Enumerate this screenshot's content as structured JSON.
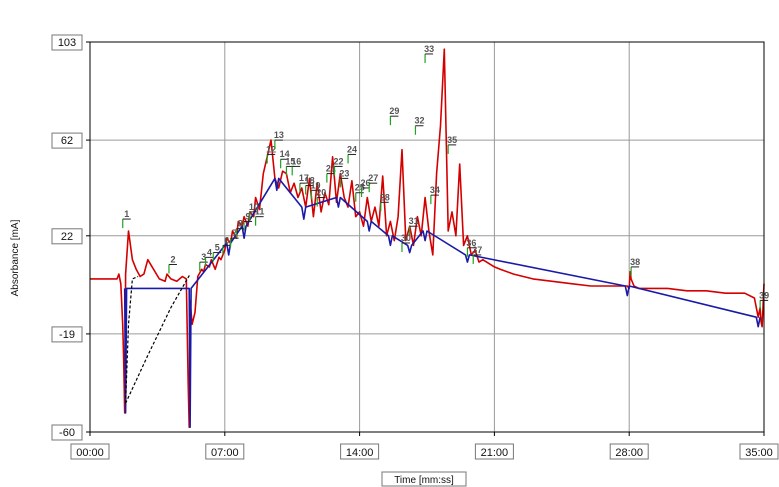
{
  "chart_data": {
    "type": "line",
    "xlabel": "Time [mm:ss]",
    "ylabel": "Absorbance [mA]",
    "xlim": [
      0,
      35
    ],
    "ylim": [
      -60,
      103
    ],
    "x_ticks": [
      {
        "value": 0,
        "label": "00:00"
      },
      {
        "value": 7,
        "label": "07:00"
      },
      {
        "value": 14,
        "label": "14:00"
      },
      {
        "value": 21,
        "label": "21:00"
      },
      {
        "value": 28,
        "label": "28:00"
      },
      {
        "value": 35,
        "label": "35:00"
      }
    ],
    "y_ticks": [
      {
        "value": -60,
        "label": "-60"
      },
      {
        "value": -19,
        "label": "-19"
      },
      {
        "value": 22,
        "label": "22"
      },
      {
        "value": 62,
        "label": "62"
      },
      {
        "value": 103,
        "label": "103"
      }
    ],
    "grid": true,
    "colors": {
      "main": "#d40000",
      "blue": "#1a1aa8",
      "peak_marker": "#1fa21f",
      "baseline": "#000000",
      "grid": "#9a9a9a"
    },
    "series": [
      {
        "color": "#d40000",
        "x": [
          0,
          1.4,
          1.5,
          1.6,
          1.7,
          1.75,
          1.8,
          1.85,
          2.0,
          2.2,
          2.4,
          2.6,
          2.8,
          3.0,
          3.6,
          3.9,
          4.0,
          4.2,
          4.5,
          4.8,
          5.0,
          5.1,
          5.15,
          5.2,
          5.3,
          5.45,
          5.6,
          5.8,
          5.9,
          6.0,
          6.2,
          6.3,
          6.5,
          6.7,
          6.8,
          7.0,
          7.1,
          7.3,
          7.4,
          7.6,
          7.7,
          7.9,
          8.0,
          8.2,
          8.3,
          8.5,
          8.6,
          8.8,
          9.0,
          9.2,
          9.4,
          9.6,
          9.8,
          10.0,
          10.2,
          10.4,
          10.6,
          10.8,
          11.0,
          11.2,
          11.4,
          11.6,
          11.8,
          12.0,
          12.2,
          12.4,
          12.6,
          12.8,
          13.0,
          13.2,
          13.4,
          13.6,
          13.8,
          14.0,
          14.2,
          14.4,
          14.6,
          14.8,
          15.0,
          15.2,
          15.4,
          15.6,
          15.8,
          16.0,
          16.2,
          16.4,
          16.6,
          16.8,
          17.0,
          17.2,
          17.4,
          17.6,
          17.8,
          18.0,
          18.2,
          18.4,
          18.6,
          18.8,
          19.0,
          19.2,
          19.4,
          19.6,
          19.8,
          20.0,
          20.2,
          20.4,
          21.0,
          21.3,
          22.0,
          23.0,
          24.0,
          25.0,
          26.0,
          27.0,
          27.5,
          27.9,
          28.0,
          28.05,
          28.1,
          28.25,
          28.5,
          29.0,
          30.0,
          31.0,
          32.0,
          33.0,
          34.0,
          34.5,
          34.7,
          34.8,
          34.85,
          34.9,
          34.95,
          35.0
        ],
        "y": [
          4,
          4,
          6,
          2,
          -15,
          -30,
          -52,
          6,
          24,
          12,
          8,
          5,
          6,
          12,
          4,
          3,
          6,
          4,
          3,
          5,
          4,
          -40,
          -58,
          -5,
          -15,
          -10,
          5,
          8,
          7,
          10,
          9,
          12,
          8,
          13,
          12,
          16,
          21,
          19,
          24,
          21,
          28,
          26,
          30,
          26,
          32,
          30,
          38,
          33,
          48,
          55,
          62,
          46,
          42,
          49,
          48,
          40,
          44,
          38,
          42,
          34,
          46,
          30,
          44,
          32,
          40,
          35,
          55,
          36,
          48,
          38,
          34,
          45,
          30,
          32,
          26,
          38,
          28,
          34,
          26,
          47,
          22,
          28,
          20,
          30,
          58,
          20,
          26,
          18,
          30,
          22,
          38,
          24,
          14,
          48,
          68,
          100,
          24,
          32,
          22,
          52,
          18,
          22,
          14,
          16,
          11,
          12,
          9,
          8,
          6,
          4,
          3,
          2,
          1,
          1,
          1,
          1,
          0,
          7,
          4,
          1,
          0,
          0,
          0,
          -1,
          -1,
          -2,
          -2,
          -4,
          -12,
          -8,
          -14,
          -16,
          -8,
          2
        ]
      },
      {
        "color": "#1a1aa8",
        "x": [
          1.8,
          1.85,
          1.9,
          5.15,
          5.2,
          5.25,
          7.1,
          7.2,
          7.3,
          7.9,
          8.0,
          8.1,
          9.6,
          9.7,
          9.8,
          11.0,
          11.1,
          11.2,
          12.8,
          12.9,
          13.0,
          14.4,
          14.5,
          14.6,
          15.5,
          15.6,
          15.7,
          16.5,
          16.6,
          16.7,
          17.3,
          17.4,
          17.5,
          19.5,
          19.6,
          19.7,
          27.8,
          27.9,
          28.0,
          34.6,
          34.7,
          34.8
        ],
        "y": [
          0,
          -52,
          0,
          0,
          -58,
          0,
          19,
          14,
          19,
          26,
          21,
          26,
          46,
          41,
          46,
          34,
          29,
          34,
          38,
          34,
          38,
          28,
          24,
          28,
          22,
          18,
          22,
          18,
          15,
          18,
          24,
          20,
          24,
          14,
          11,
          14,
          1,
          -3,
          1,
          -12,
          -16,
          -12
        ]
      },
      {
        "color": "#000000",
        "dashed": true,
        "x": [
          1.85,
          2.0,
          2.2,
          2.5
        ],
        "y": [
          -48,
          -15,
          4,
          5
        ]
      },
      {
        "color": "#000000",
        "dashed": true,
        "x": [
          1.85,
          3.0,
          4.2,
          5.2
        ],
        "y": [
          -48,
          -28,
          -8,
          6
        ]
      }
    ],
    "peaks": [
      {
        "label": "1",
        "x": 1.7,
        "y": 29
      },
      {
        "label": "2",
        "x": 4.1,
        "y": 10
      },
      {
        "label": "3",
        "x": 5.7,
        "y": 11
      },
      {
        "label": "4",
        "x": 6.0,
        "y": 13
      },
      {
        "label": "5",
        "x": 6.4,
        "y": 15
      },
      {
        "label": "6",
        "x": 6.9,
        "y": 18
      },
      {
        "label": "7",
        "x": 7.3,
        "y": 21
      },
      {
        "label": "8",
        "x": 7.6,
        "y": 25
      },
      {
        "label": "9",
        "x": 8.0,
        "y": 28
      },
      {
        "label": "10",
        "x": 8.3,
        "y": 32
      },
      {
        "label": "11",
        "x": 8.6,
        "y": 30
      },
      {
        "label": "12",
        "x": 9.2,
        "y": 56
      },
      {
        "label": "13",
        "x": 9.6,
        "y": 62
      },
      {
        "label": "14",
        "x": 9.9,
        "y": 54
      },
      {
        "label": "15",
        "x": 10.2,
        "y": 51
      },
      {
        "label": "16",
        "x": 10.5,
        "y": 51
      },
      {
        "label": "17",
        "x": 10.9,
        "y": 44
      },
      {
        "label": "18",
        "x": 11.2,
        "y": 43
      },
      {
        "label": "19",
        "x": 11.5,
        "y": 41
      },
      {
        "label": "20",
        "x": 11.8,
        "y": 38
      },
      {
        "label": "21",
        "x": 12.3,
        "y": 48
      },
      {
        "label": "22",
        "x": 12.7,
        "y": 51
      },
      {
        "label": "23",
        "x": 13.0,
        "y": 46
      },
      {
        "label": "24",
        "x": 13.4,
        "y": 56
      },
      {
        "label": "25",
        "x": 13.8,
        "y": 40
      },
      {
        "label": "26",
        "x": 14.1,
        "y": 42
      },
      {
        "label": "27",
        "x": 14.5,
        "y": 44
      },
      {
        "label": "28",
        "x": 15.1,
        "y": 36
      },
      {
        "label": "29",
        "x": 15.6,
        "y": 72
      },
      {
        "label": "30",
        "x": 16.2,
        "y": 19
      },
      {
        "label": "31",
        "x": 16.6,
        "y": 26
      },
      {
        "label": "32",
        "x": 16.9,
        "y": 68
      },
      {
        "label": "33",
        "x": 17.4,
        "y": 98
      },
      {
        "label": "34",
        "x": 17.7,
        "y": 39
      },
      {
        "label": "35",
        "x": 18.6,
        "y": 60
      },
      {
        "label": "36",
        "x": 19.6,
        "y": 17
      },
      {
        "label": "37",
        "x": 19.9,
        "y": 14
      },
      {
        "label": "38",
        "x": 28.1,
        "y": 9
      },
      {
        "label": "39",
        "x": 34.8,
        "y": -5
      }
    ]
  }
}
